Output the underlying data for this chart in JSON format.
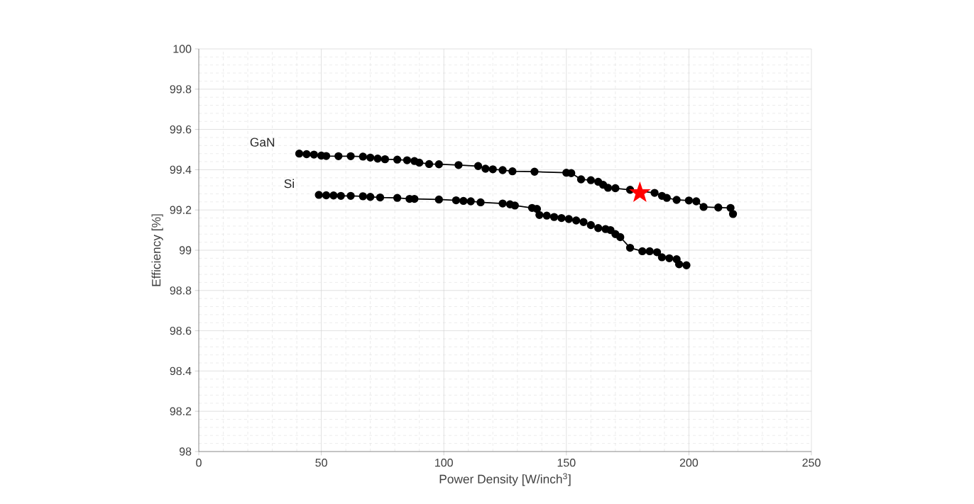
{
  "chart_data": {
    "type": "line",
    "xlabel": "Power Density [W/inch$^{3}$]",
    "ylabel": "Efficiency [%]",
    "xlim": [
      0,
      250
    ],
    "xticks": [
      0,
      50,
      100,
      150,
      200,
      250
    ],
    "ylim": [
      98,
      100
    ],
    "yticks": [
      98,
      98.2,
      98.4,
      98.6,
      98.8,
      99,
      99.2,
      99.4,
      99.6,
      99.8,
      100
    ],
    "grid": true,
    "marker": "circle",
    "line_style": "solid",
    "series": [
      {
        "name": "GaN",
        "color": "#000000",
        "x": [
          41,
          44,
          47,
          50,
          52,
          57,
          62,
          67,
          70,
          73,
          76,
          81,
          85,
          88,
          90,
          94,
          98,
          106,
          114,
          117,
          120,
          124,
          128,
          137,
          150,
          152,
          156,
          160,
          163,
          165,
          167,
          170,
          176,
          186,
          189,
          191,
          195,
          200,
          203,
          206,
          212,
          217,
          218
        ],
        "values": [
          99.48,
          99.477,
          99.475,
          99.47,
          99.468,
          99.467,
          99.467,
          99.465,
          99.46,
          99.455,
          99.452,
          99.45,
          99.447,
          99.443,
          99.435,
          99.428,
          99.427,
          99.423,
          99.418,
          99.405,
          99.402,
          99.398,
          99.392,
          99.39,
          99.385,
          99.383,
          99.352,
          99.348,
          99.34,
          99.325,
          99.31,
          99.308,
          99.3,
          99.285,
          99.27,
          99.26,
          99.25,
          99.247,
          99.243,
          99.215,
          99.212,
          99.21,
          99.18
        ]
      },
      {
        "name": "Si",
        "color": "#000000",
        "x": [
          49,
          52,
          55,
          58,
          62,
          67,
          70,
          74,
          81,
          86,
          88,
          98,
          105,
          108,
          111,
          115,
          124,
          127,
          129,
          136,
          138,
          139,
          142,
          145,
          148,
          151,
          154,
          157,
          160,
          163,
          166,
          168,
          170,
          172,
          176,
          181,
          184,
          187,
          189,
          192,
          195,
          196,
          199
        ],
        "values": [
          99.275,
          99.273,
          99.272,
          99.27,
          99.27,
          99.268,
          99.265,
          99.262,
          99.26,
          99.255,
          99.255,
          99.252,
          99.248,
          99.245,
          99.243,
          99.238,
          99.232,
          99.228,
          99.222,
          99.21,
          99.205,
          99.175,
          99.172,
          99.165,
          99.16,
          99.155,
          99.148,
          99.14,
          99.125,
          99.11,
          99.105,
          99.1,
          99.08,
          99.065,
          99.012,
          98.995,
          98.995,
          98.99,
          98.965,
          98.96,
          98.955,
          98.93,
          98.925
        ]
      },
      {
        "type": "scatter",
        "marker": "star",
        "color": "#ff0000",
        "x": [
          180
        ],
        "values": [
          99.285
        ]
      }
    ]
  }
}
